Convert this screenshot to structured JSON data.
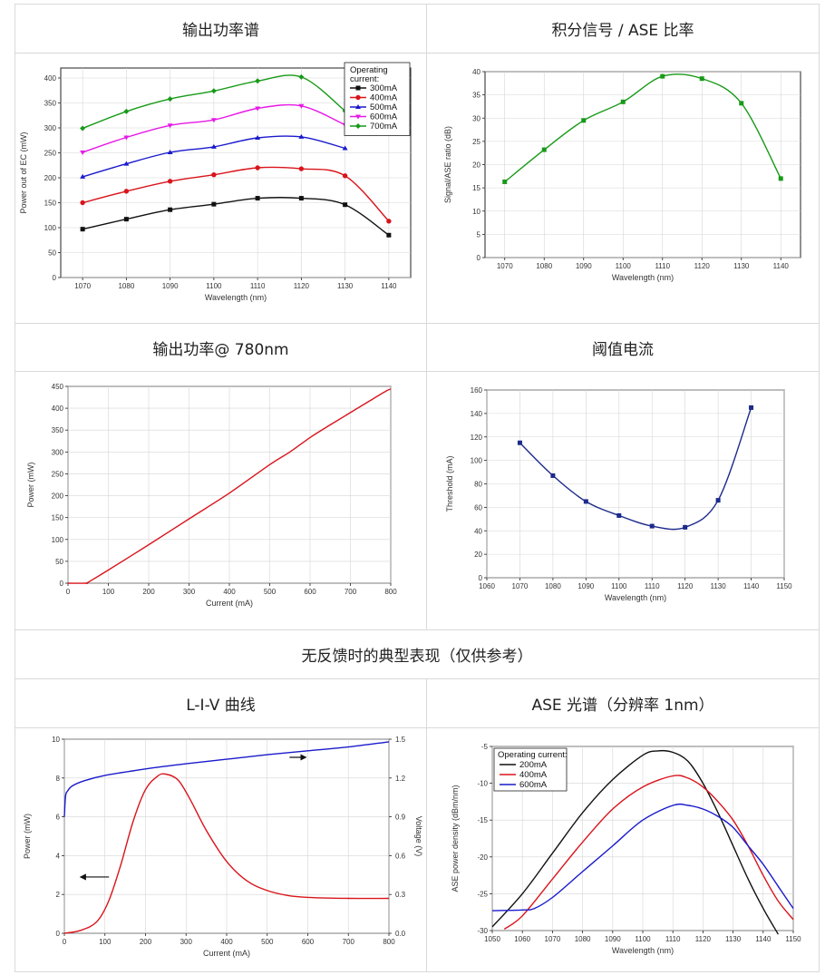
{
  "headers": {
    "h1": "输出功率谱",
    "h2": "积分信号 / ASE 比率",
    "h3": "输出功率@ 780nm",
    "h4": "阈值电流",
    "banner": "无反馈时的典型表现（仅供参考）",
    "h5": "L-I-V 曲线",
    "h6": "ASE  光谱（分辨率  1nm）"
  },
  "colors": {
    "black": "#111111",
    "red": "#d9141b",
    "blue": "#1a1acc",
    "magenta": "#e619e6",
    "green": "#179a17",
    "navy": "#1c2a8c"
  },
  "chart_data": [
    {
      "id": "power-spectrum",
      "type": "line",
      "xlabel": "Wavelength (nm)",
      "ylabel": "Power out of EC (mW)",
      "xlim": [
        1065,
        1145
      ],
      "ylim": [
        0,
        420
      ],
      "xticks": [
        1070,
        1080,
        1090,
        1100,
        1110,
        1120,
        1130,
        1140
      ],
      "yticks": [
        0,
        50,
        100,
        150,
        200,
        250,
        300,
        350,
        400
      ],
      "legend_title": "Operating current:",
      "legend_position": "top-right",
      "series": [
        {
          "name": "300mA",
          "color": "#111111",
          "marker": "square",
          "x": [
            1070,
            1080,
            1090,
            1100,
            1110,
            1120,
            1130,
            1140
          ],
          "y": [
            97,
            117,
            136,
            147,
            159,
            159,
            146,
            85
          ]
        },
        {
          "name": "400mA",
          "color": "#d9141b",
          "marker": "circle",
          "x": [
            1070,
            1080,
            1090,
            1100,
            1110,
            1120,
            1130,
            1140
          ],
          "y": [
            150,
            173,
            193,
            206,
            220,
            218,
            204,
            113
          ]
        },
        {
          "name": "500mA",
          "color": "#1a1acc",
          "marker": "triangle",
          "x": [
            1070,
            1080,
            1090,
            1100,
            1110,
            1120,
            1130
          ],
          "y": [
            202,
            228,
            251,
            262,
            280,
            282,
            259
          ]
        },
        {
          "name": "600mA",
          "color": "#e619e6",
          "marker": "triangle-down",
          "x": [
            1070,
            1080,
            1090,
            1100,
            1110,
            1120,
            1130
          ],
          "y": [
            251,
            281,
            305,
            316,
            339,
            344,
            306
          ]
        },
        {
          "name": "700mA",
          "color": "#179a17",
          "marker": "diamond",
          "x": [
            1070,
            1080,
            1090,
            1100,
            1110,
            1120,
            1130
          ],
          "y": [
            299,
            333,
            358,
            374,
            394,
            402,
            334
          ]
        }
      ]
    },
    {
      "id": "signal-ase",
      "type": "line",
      "xlabel": "Wavelength (nm)",
      "ylabel": "Signal/ASE ratio (dB)",
      "xlim": [
        1065,
        1145
      ],
      "ylim": [
        0,
        40
      ],
      "xticks": [
        1070,
        1080,
        1090,
        1100,
        1110,
        1120,
        1130,
        1140
      ],
      "yticks": [
        0,
        5,
        10,
        15,
        20,
        25,
        30,
        35,
        40
      ],
      "series": [
        {
          "name": "",
          "color": "#179a17",
          "marker": "square",
          "x": [
            1070,
            1080,
            1090,
            1100,
            1110,
            1120,
            1130,
            1140
          ],
          "y": [
            16.3,
            23.2,
            29.5,
            33.5,
            39,
            38.5,
            33.2,
            17
          ]
        }
      ]
    },
    {
      "id": "power-780",
      "type": "line",
      "xlabel": "Current (mA)",
      "ylabel": "Power (mW)",
      "xlim": [
        0,
        800
      ],
      "ylim": [
        0,
        450
      ],
      "xticks": [
        0,
        100,
        200,
        300,
        400,
        500,
        600,
        700,
        800
      ],
      "yticks": [
        0,
        50,
        100,
        150,
        200,
        250,
        300,
        350,
        400,
        450
      ],
      "series": [
        {
          "name": "",
          "color": "#d9141b",
          "x": [
            0,
            45,
            50,
            100,
            200,
            300,
            400,
            500,
            550,
            600,
            650,
            700,
            750,
            790,
            800
          ],
          "y": [
            0,
            0,
            2,
            30,
            88,
            147,
            206,
            271,
            300,
            333,
            362,
            390,
            418,
            440,
            444
          ]
        }
      ]
    },
    {
      "id": "threshold",
      "type": "line",
      "xlabel": "Wavelength (nm)",
      "ylabel": "Threshold (mA)",
      "xlim": [
        1060,
        1150
      ],
      "ylim": [
        0,
        160
      ],
      "xticks": [
        1060,
        1070,
        1080,
        1090,
        1100,
        1110,
        1120,
        1130,
        1140,
        1150
      ],
      "yticks": [
        0,
        20,
        40,
        60,
        80,
        100,
        120,
        140,
        160
      ],
      "series": [
        {
          "name": "",
          "color": "#1c2a8c",
          "marker": "square",
          "x": [
            1070,
            1080,
            1090,
            1100,
            1110,
            1120,
            1130,
            1140
          ],
          "y": [
            115,
            87,
            65,
            53,
            44,
            43,
            66,
            145
          ]
        }
      ]
    },
    {
      "id": "liv",
      "type": "line",
      "xlabel": "Current (mA)",
      "ylabel": "Power (mW)",
      "y2label": "Voltage (V)",
      "xlim": [
        0,
        800
      ],
      "ylim": [
        0,
        10
      ],
      "y2lim": [
        0,
        1.5
      ],
      "xticks": [
        0,
        100,
        200,
        300,
        400,
        500,
        600,
        700,
        800
      ],
      "yticks": [
        0,
        2,
        4,
        6,
        8,
        10
      ],
      "y2ticks": [
        "0.0",
        "0.3",
        "0.6",
        "0.9",
        "1.2",
        "1.5"
      ],
      "series": [
        {
          "name": "",
          "axis": "left",
          "color": "#d9141b",
          "x": [
            0,
            40,
            80,
            110,
            140,
            170,
            200,
            230,
            250,
            280,
            310,
            350,
            400,
            450,
            500,
            550,
            600,
            700,
            800
          ],
          "y": [
            0,
            0.15,
            0.6,
            1.7,
            3.6,
            5.8,
            7.4,
            8.1,
            8.2,
            7.9,
            6.9,
            5.3,
            3.7,
            2.7,
            2.2,
            1.95,
            1.85,
            1.8,
            1.8
          ]
        },
        {
          "name": "",
          "axis": "right",
          "color": "#1a1acc",
          "x": [
            0,
            3,
            8,
            20,
            50,
            100,
            200,
            300,
            400,
            500,
            600,
            700,
            800
          ],
          "y": [
            0.9,
            1.06,
            1.1,
            1.14,
            1.18,
            1.22,
            1.27,
            1.31,
            1.345,
            1.38,
            1.41,
            1.44,
            1.48
          ]
        }
      ]
    },
    {
      "id": "ase-spectrum",
      "type": "line",
      "xlabel": "Wavelength (nm)",
      "ylabel": "ASE power density (dBm/nm)",
      "xlim": [
        1050,
        1150
      ],
      "ylim": [
        -30,
        -5
      ],
      "xticks": [
        1050,
        1060,
        1070,
        1080,
        1090,
        1100,
        1110,
        1120,
        1130,
        1140,
        1150
      ],
      "yticks": [
        -30,
        -25,
        -20,
        -15,
        -10,
        -5
      ],
      "legend_title": "Operating current:",
      "legend_position": "top-left",
      "series": [
        {
          "name": "200mA",
          "color": "#111111",
          "x": [
            1050,
            1060,
            1070,
            1080,
            1090,
            1100,
            1105,
            1110,
            1115,
            1120,
            1125,
            1130,
            1135,
            1140,
            1145
          ],
          "y": [
            -29.5,
            -25,
            -19.5,
            -14,
            -9.5,
            -6.2,
            -5.6,
            -5.8,
            -7,
            -10,
            -14,
            -18.5,
            -23,
            -27,
            -30.5
          ]
        },
        {
          "name": "400mA",
          "color": "#d9141b",
          "x": [
            1054,
            1060,
            1070,
            1080,
            1090,
            1100,
            1110,
            1115,
            1120,
            1125,
            1130,
            1135,
            1140,
            1145,
            1150
          ],
          "y": [
            -29.8,
            -28,
            -23,
            -18,
            -13.5,
            -10.5,
            -9,
            -9.3,
            -10.5,
            -12.5,
            -15,
            -18.5,
            -22.5,
            -26,
            -28.5
          ]
        },
        {
          "name": "600mA",
          "color": "#1a1acc",
          "x": [
            1050,
            1060,
            1064,
            1070,
            1080,
            1090,
            1100,
            1110,
            1115,
            1120,
            1125,
            1130,
            1135,
            1140,
            1145,
            1150
          ],
          "y": [
            -27.3,
            -27.2,
            -27,
            -25.5,
            -22,
            -18.5,
            -15,
            -13,
            -13,
            -13.5,
            -14.5,
            -16,
            -18.5,
            -21,
            -24,
            -27
          ]
        }
      ]
    }
  ]
}
